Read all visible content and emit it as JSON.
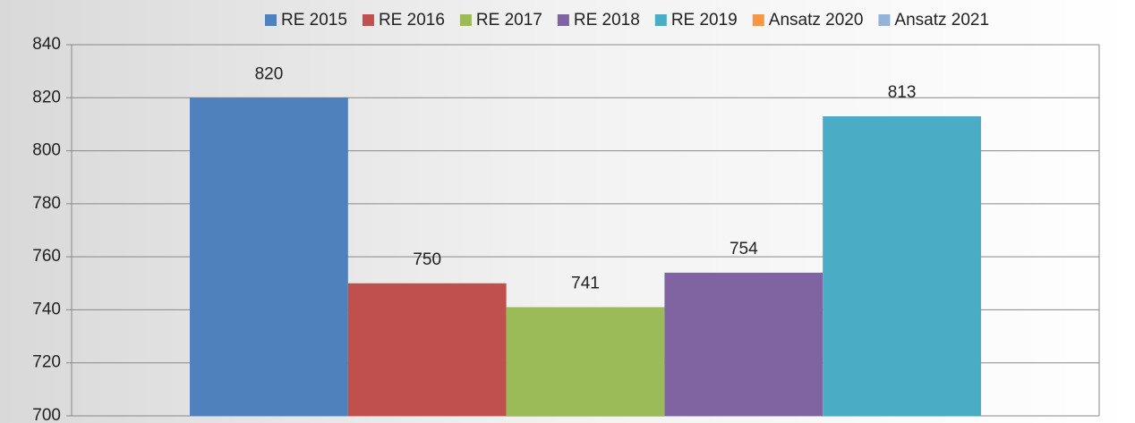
{
  "chart_data": {
    "type": "bar",
    "categories": [
      null
    ],
    "series": [
      {
        "name": "RE 2015",
        "color": "#4f81bd",
        "values": [
          820
        ]
      },
      {
        "name": "RE 2016",
        "color": "#c0504d",
        "values": [
          750
        ]
      },
      {
        "name": "RE 2017",
        "color": "#9bbb59",
        "values": [
          741
        ]
      },
      {
        "name": "RE 2018",
        "color": "#8064a2",
        "values": [
          754
        ]
      },
      {
        "name": "RE 2019",
        "color": "#4bacc6",
        "values": [
          813
        ]
      },
      {
        "name": "Ansatz 2020",
        "color": "#f79646",
        "values": [
          null
        ]
      },
      {
        "name": "Ansatz 2021",
        "color": "#95b3d7",
        "values": [
          null
        ]
      }
    ],
    "ylim": [
      700,
      840
    ],
    "yticks": [
      700,
      720,
      740,
      760,
      780,
      800,
      820,
      840
    ],
    "grid": true,
    "legend": "top"
  }
}
